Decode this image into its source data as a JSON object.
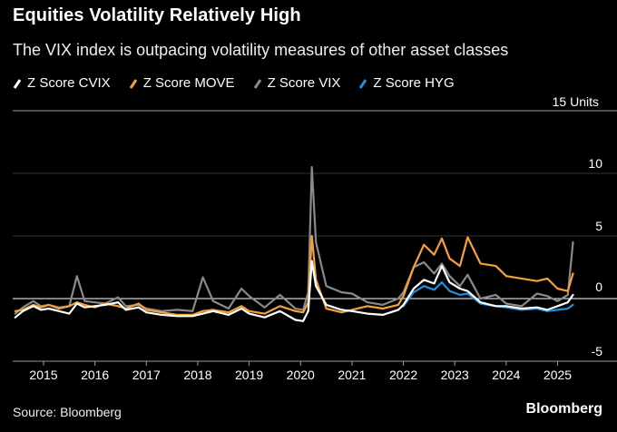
{
  "chart_data": {
    "type": "line",
    "title": "Equities Volatility Relatively High",
    "subtitle": "The VIX index is outpacing volatility measures of other asset classes",
    "unit_label": "15 Units",
    "ylim": [
      -5,
      15
    ],
    "yticks": [
      -5,
      0,
      5,
      10
    ],
    "xlim": [
      2014.4,
      2025.45
    ],
    "xticks": [
      2015,
      2016,
      2017,
      2018,
      2019,
      2020,
      2021,
      2022,
      2023,
      2024,
      2025
    ],
    "grid": true,
    "legend_position": "top-left",
    "series": [
      {
        "name": "Z Score CVIX",
        "color": "#ffffff",
        "points": [
          [
            2014.45,
            -1.5
          ],
          [
            2014.6,
            -1.0
          ],
          [
            2014.8,
            -0.6
          ],
          [
            2014.95,
            -0.9
          ],
          [
            2015.1,
            -0.8
          ],
          [
            2015.3,
            -1.0
          ],
          [
            2015.5,
            -1.2
          ],
          [
            2015.65,
            -0.4
          ],
          [
            2015.8,
            -0.7
          ],
          [
            2016.0,
            -0.6
          ],
          [
            2016.2,
            -0.5
          ],
          [
            2016.45,
            -0.3
          ],
          [
            2016.6,
            -0.9
          ],
          [
            2016.85,
            -0.7
          ],
          [
            2017.0,
            -1.1
          ],
          [
            2017.3,
            -1.3
          ],
          [
            2017.6,
            -1.4
          ],
          [
            2017.9,
            -1.4
          ],
          [
            2018.1,
            -1.2
          ],
          [
            2018.3,
            -1.0
          ],
          [
            2018.6,
            -1.3
          ],
          [
            2018.85,
            -0.8
          ],
          [
            2019.0,
            -1.2
          ],
          [
            2019.3,
            -1.5
          ],
          [
            2019.6,
            -1.0
          ],
          [
            2019.9,
            -1.7
          ],
          [
            2020.05,
            -1.8
          ],
          [
            2020.15,
            -1.0
          ],
          [
            2020.22,
            3.0
          ],
          [
            2020.3,
            1.0
          ],
          [
            2020.5,
            -0.5
          ],
          [
            2020.8,
            -0.9
          ],
          [
            2021.0,
            -1.0
          ],
          [
            2021.3,
            -1.2
          ],
          [
            2021.6,
            -1.3
          ],
          [
            2021.9,
            -0.9
          ],
          [
            2022.0,
            -0.5
          ],
          [
            2022.2,
            0.8
          ],
          [
            2022.4,
            1.5
          ],
          [
            2022.6,
            1.2
          ],
          [
            2022.75,
            2.6
          ],
          [
            2022.9,
            1.3
          ],
          [
            2023.1,
            0.8
          ],
          [
            2023.25,
            0.6
          ],
          [
            2023.5,
            -0.3
          ],
          [
            2023.8,
            -0.6
          ],
          [
            2024.0,
            -0.6
          ],
          [
            2024.3,
            -0.8
          ],
          [
            2024.6,
            -0.7
          ],
          [
            2024.8,
            -0.9
          ],
          [
            2025.0,
            -0.6
          ],
          [
            2025.2,
            -0.3
          ],
          [
            2025.3,
            0.3
          ]
        ]
      },
      {
        "name": "Z Score MOVE",
        "color": "#f6a03a",
        "points": [
          [
            2014.45,
            -1.0
          ],
          [
            2014.6,
            -0.9
          ],
          [
            2014.8,
            -0.5
          ],
          [
            2014.95,
            -0.7
          ],
          [
            2015.1,
            -0.5
          ],
          [
            2015.3,
            -0.8
          ],
          [
            2015.5,
            -0.6
          ],
          [
            2015.65,
            -0.3
          ],
          [
            2015.8,
            -0.5
          ],
          [
            2016.0,
            -0.7
          ],
          [
            2016.2,
            -0.4
          ],
          [
            2016.45,
            -0.6
          ],
          [
            2016.6,
            -0.8
          ],
          [
            2016.85,
            -0.4
          ],
          [
            2017.0,
            -0.9
          ],
          [
            2017.3,
            -1.1
          ],
          [
            2017.6,
            -1.3
          ],
          [
            2017.9,
            -1.3
          ],
          [
            2018.1,
            -1.0
          ],
          [
            2018.3,
            -0.9
          ],
          [
            2018.6,
            -1.1
          ],
          [
            2018.85,
            -0.6
          ],
          [
            2019.0,
            -1.0
          ],
          [
            2019.3,
            -1.2
          ],
          [
            2019.6,
            -0.6
          ],
          [
            2019.9,
            -1.0
          ],
          [
            2020.05,
            -1.1
          ],
          [
            2020.15,
            -0.3
          ],
          [
            2020.22,
            5.0
          ],
          [
            2020.3,
            1.5
          ],
          [
            2020.5,
            -0.8
          ],
          [
            2020.8,
            -1.1
          ],
          [
            2021.0,
            -0.9
          ],
          [
            2021.3,
            -0.6
          ],
          [
            2021.6,
            -0.8
          ],
          [
            2021.9,
            -0.5
          ],
          [
            2022.0,
            0.2
          ],
          [
            2022.2,
            2.5
          ],
          [
            2022.4,
            4.3
          ],
          [
            2022.6,
            3.5
          ],
          [
            2022.75,
            4.8
          ],
          [
            2022.9,
            3.2
          ],
          [
            2023.1,
            2.6
          ],
          [
            2023.25,
            4.9
          ],
          [
            2023.5,
            2.8
          ],
          [
            2023.8,
            2.6
          ],
          [
            2024.0,
            1.8
          ],
          [
            2024.3,
            1.6
          ],
          [
            2024.6,
            1.4
          ],
          [
            2024.8,
            1.6
          ],
          [
            2025.0,
            0.8
          ],
          [
            2025.2,
            0.6
          ],
          [
            2025.3,
            2.0
          ]
        ]
      },
      {
        "name": "Z Score VIX",
        "color": "#8a8a8a",
        "points": [
          [
            2014.45,
            -1.2
          ],
          [
            2014.6,
            -0.7
          ],
          [
            2014.8,
            -0.2
          ],
          [
            2014.95,
            -0.6
          ],
          [
            2015.1,
            -0.5
          ],
          [
            2015.3,
            -0.7
          ],
          [
            2015.5,
            -0.6
          ],
          [
            2015.65,
            1.8
          ],
          [
            2015.8,
            -0.2
          ],
          [
            2016.0,
            -0.3
          ],
          [
            2016.2,
            -0.4
          ],
          [
            2016.45,
            0.1
          ],
          [
            2016.6,
            -0.6
          ],
          [
            2016.85,
            -0.5
          ],
          [
            2017.0,
            -0.8
          ],
          [
            2017.3,
            -1.0
          ],
          [
            2017.6,
            -0.9
          ],
          [
            2017.9,
            -1.0
          ],
          [
            2018.1,
            1.7
          ],
          [
            2018.3,
            -0.2
          ],
          [
            2018.6,
            -0.8
          ],
          [
            2018.85,
            0.8
          ],
          [
            2019.0,
            0.2
          ],
          [
            2019.3,
            -0.7
          ],
          [
            2019.6,
            0.3
          ],
          [
            2019.9,
            -0.8
          ],
          [
            2020.05,
            -0.9
          ],
          [
            2020.15,
            0.5
          ],
          [
            2020.22,
            10.5
          ],
          [
            2020.3,
            4.5
          ],
          [
            2020.5,
            1.0
          ],
          [
            2020.8,
            0.5
          ],
          [
            2021.0,
            0.4
          ],
          [
            2021.3,
            -0.3
          ],
          [
            2021.6,
            -0.5
          ],
          [
            2021.9,
            0.0
          ],
          [
            2022.0,
            0.5
          ],
          [
            2022.2,
            2.5
          ],
          [
            2022.4,
            2.9
          ],
          [
            2022.6,
            2.0
          ],
          [
            2022.75,
            2.8
          ],
          [
            2022.9,
            1.8
          ],
          [
            2023.1,
            1.0
          ],
          [
            2023.25,
            1.9
          ],
          [
            2023.5,
            0.0
          ],
          [
            2023.8,
            0.3
          ],
          [
            2024.0,
            -0.4
          ],
          [
            2024.3,
            -0.6
          ],
          [
            2024.6,
            0.4
          ],
          [
            2024.8,
            0.2
          ],
          [
            2025.0,
            -0.2
          ],
          [
            2025.2,
            0.3
          ],
          [
            2025.3,
            4.5
          ]
        ]
      },
      {
        "name": "Z Score HYG",
        "color": "#1e8fe0",
        "points": [
          [
            2022.0,
            -0.6
          ],
          [
            2022.2,
            0.5
          ],
          [
            2022.4,
            1.0
          ],
          [
            2022.6,
            0.7
          ],
          [
            2022.75,
            1.3
          ],
          [
            2022.9,
            0.6
          ],
          [
            2023.1,
            0.3
          ],
          [
            2023.25,
            0.4
          ],
          [
            2023.5,
            -0.4
          ],
          [
            2023.8,
            -0.6
          ],
          [
            2024.0,
            -0.7
          ],
          [
            2024.3,
            -0.9
          ],
          [
            2024.6,
            -0.8
          ],
          [
            2024.8,
            -1.0
          ],
          [
            2025.0,
            -0.9
          ],
          [
            2025.2,
            -0.8
          ],
          [
            2025.3,
            -0.5
          ]
        ]
      }
    ]
  },
  "source": "Source: Bloomberg",
  "brand": "Bloomberg"
}
